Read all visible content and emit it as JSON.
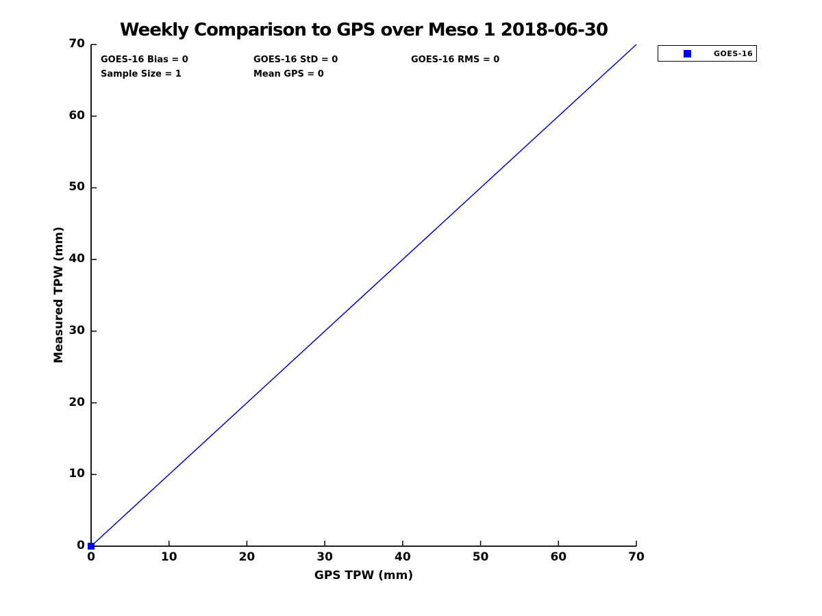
{
  "chart_data": {
    "type": "line",
    "title": "Weekly Comparison to GPS over Meso 1 2018-06-30",
    "xlabel": "GPS TPW (mm)",
    "ylabel": "Measured TPW (mm)",
    "xlim": [
      0,
      70
    ],
    "ylim": [
      0,
      70
    ],
    "x_ticks": [
      0,
      10,
      20,
      30,
      40,
      50,
      60,
      70
    ],
    "y_ticks": [
      0,
      10,
      20,
      30,
      40,
      50,
      60,
      70
    ],
    "grid": false,
    "legend": {
      "position": "top-right-outside",
      "entries": [
        {
          "label": "GOES-16",
          "marker": "square",
          "color": "#0000ff"
        }
      ]
    },
    "series": [
      {
        "name": "one-to-one-reference-line",
        "type": "line",
        "color": "#0000e0",
        "line_width": 1.5,
        "x": [
          0,
          70
        ],
        "y": [
          0,
          70
        ]
      },
      {
        "name": "GOES-16",
        "type": "scatter",
        "marker": "square",
        "color": "#0000ff",
        "size": 10,
        "x": [
          0
        ],
        "y": [
          0
        ]
      }
    ],
    "annotations": [
      {
        "id": "bias",
        "text": "GOES-16 Bias = 0"
      },
      {
        "id": "std",
        "text": "GOES-16 StD = 0"
      },
      {
        "id": "rms",
        "text": "GOES-16 RMS = 0"
      },
      {
        "id": "sample_size",
        "text": "Sample Size = 1"
      },
      {
        "id": "mean_gps",
        "text": "Mean GPS = 0"
      }
    ],
    "colors": {
      "axis": "#000000",
      "text": "#000000",
      "background": "#ffffff"
    }
  }
}
